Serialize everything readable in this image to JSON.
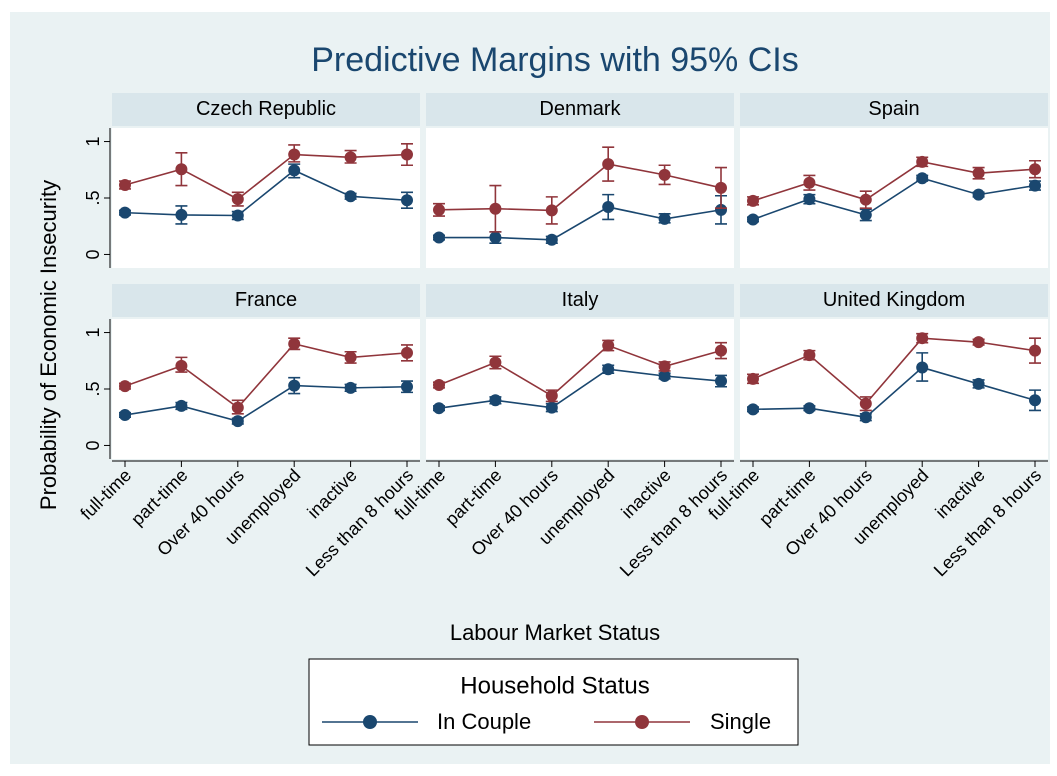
{
  "title": "Predictive Margins with 95% CIs",
  "x_label": "Labour Market Status",
  "y_label": "Probability of Economic Insecurity",
  "legend_title": "Household Status",
  "chart_data": [
    {
      "type": "line",
      "title": "Czech Republic",
      "categories": [
        "full-time",
        "part-time",
        "Over 40 hours",
        "unemployed",
        "inactive",
        "Less than 8 hours"
      ],
      "ylim": [
        -0.12,
        1.12
      ],
      "yticks": [
        0,
        {
          "value": 0.5,
          "label": ".5"
        },
        1
      ],
      "series": [
        {
          "name": "In Couple",
          "color": "#1a476f",
          "values": [
            0.37,
            0.35,
            0.345,
            0.745,
            0.515,
            0.48
          ],
          "ci_low": [
            0.35,
            0.27,
            0.31,
            0.68,
            0.49,
            0.41
          ],
          "ci_high": [
            0.39,
            0.43,
            0.38,
            0.8,
            0.54,
            0.55
          ]
        },
        {
          "name": "Single",
          "color": "#90353b",
          "values": [
            0.615,
            0.755,
            0.49,
            0.885,
            0.86,
            0.885
          ],
          "ci_low": [
            0.58,
            0.61,
            0.43,
            0.82,
            0.81,
            0.79
          ],
          "ci_high": [
            0.65,
            0.9,
            0.55,
            0.97,
            0.92,
            0.98
          ]
        }
      ]
    },
    {
      "type": "line",
      "title": "Denmark",
      "categories": [
        "full-time",
        "part-time",
        "Over 40 hours",
        "unemployed",
        "inactive",
        "Less than 8 hours"
      ],
      "ylim": [
        -0.12,
        1.12
      ],
      "yticks": [
        0,
        {
          "value": 0.5,
          "label": ".5"
        },
        1
      ],
      "series": [
        {
          "name": "In Couple",
          "color": "#1a476f",
          "values": [
            0.15,
            0.15,
            0.13,
            0.42,
            0.315,
            0.395
          ],
          "ci_low": [
            0.13,
            0.1,
            0.1,
            0.31,
            0.28,
            0.27
          ],
          "ci_high": [
            0.17,
            0.2,
            0.16,
            0.53,
            0.36,
            0.52
          ]
        },
        {
          "name": "Single",
          "color": "#90353b",
          "values": [
            0.395,
            0.405,
            0.39,
            0.8,
            0.705,
            0.59
          ],
          "ci_low": [
            0.34,
            0.2,
            0.27,
            0.65,
            0.62,
            0.41
          ],
          "ci_high": [
            0.45,
            0.61,
            0.51,
            0.95,
            0.79,
            0.77
          ]
        }
      ]
    },
    {
      "type": "line",
      "title": "Spain",
      "categories": [
        "full-time",
        "part-time",
        "Over 40 hours",
        "unemployed",
        "inactive",
        "Less than 8 hours"
      ],
      "ylim": [
        -0.12,
        1.12
      ],
      "yticks": [
        0,
        {
          "value": 0.5,
          "label": ".5"
        },
        1
      ],
      "series": [
        {
          "name": "In Couple",
          "color": "#1a476f",
          "values": [
            0.31,
            0.49,
            0.35,
            0.675,
            0.53,
            0.61
          ],
          "ci_low": [
            0.29,
            0.45,
            0.3,
            0.65,
            0.51,
            0.57
          ],
          "ci_high": [
            0.33,
            0.53,
            0.4,
            0.7,
            0.55,
            0.65
          ]
        },
        {
          "name": "Single",
          "color": "#90353b",
          "values": [
            0.475,
            0.635,
            0.485,
            0.82,
            0.72,
            0.755
          ],
          "ci_low": [
            0.44,
            0.57,
            0.41,
            0.78,
            0.67,
            0.68
          ],
          "ci_high": [
            0.51,
            0.7,
            0.56,
            0.86,
            0.77,
            0.83
          ]
        }
      ]
    },
    {
      "type": "line",
      "title": "France",
      "categories": [
        "full-time",
        "part-time",
        "Over 40 hours",
        "unemployed",
        "inactive",
        "Less than 8 hours"
      ],
      "ylim": [
        -0.12,
        1.12
      ],
      "yticks": [
        0,
        {
          "value": 0.5,
          "label": ".5"
        },
        1
      ],
      "series": [
        {
          "name": "In Couple",
          "color": "#1a476f",
          "values": [
            0.27,
            0.35,
            0.215,
            0.53,
            0.51,
            0.52
          ],
          "ci_low": [
            0.25,
            0.32,
            0.19,
            0.46,
            0.48,
            0.47
          ],
          "ci_high": [
            0.29,
            0.38,
            0.24,
            0.6,
            0.54,
            0.57
          ]
        },
        {
          "name": "Single",
          "color": "#90353b",
          "values": [
            0.525,
            0.705,
            0.335,
            0.9,
            0.78,
            0.82
          ],
          "ci_low": [
            0.5,
            0.65,
            0.28,
            0.85,
            0.73,
            0.75
          ],
          "ci_high": [
            0.55,
            0.78,
            0.4,
            0.95,
            0.83,
            0.89
          ]
        }
      ]
    },
    {
      "type": "line",
      "title": "Italy",
      "categories": [
        "full-time",
        "part-time",
        "Over 40 hours",
        "unemployed",
        "inactive",
        "Less than 8 hours"
      ],
      "ylim": [
        -0.12,
        1.12
      ],
      "yticks": [
        0,
        {
          "value": 0.5,
          "label": ".5"
        },
        1
      ],
      "series": [
        {
          "name": "In Couple",
          "color": "#1a476f",
          "values": [
            0.33,
            0.4,
            0.335,
            0.675,
            0.615,
            0.57
          ],
          "ci_low": [
            0.31,
            0.37,
            0.3,
            0.64,
            0.59,
            0.52
          ],
          "ci_high": [
            0.35,
            0.43,
            0.37,
            0.71,
            0.64,
            0.62
          ]
        },
        {
          "name": "Single",
          "color": "#90353b",
          "values": [
            0.535,
            0.735,
            0.44,
            0.885,
            0.7,
            0.84
          ],
          "ci_low": [
            0.51,
            0.68,
            0.39,
            0.84,
            0.66,
            0.77
          ],
          "ci_high": [
            0.56,
            0.79,
            0.49,
            0.93,
            0.74,
            0.91
          ]
        }
      ]
    },
    {
      "type": "line",
      "title": "United Kingdom",
      "categories": [
        "full-time",
        "part-time",
        "Over 40 hours",
        "unemployed",
        "inactive",
        "Less than 8 hours"
      ],
      "ylim": [
        -0.12,
        1.12
      ],
      "yticks": [
        0,
        {
          "value": 0.5,
          "label": ".5"
        },
        1
      ],
      "series": [
        {
          "name": "In Couple",
          "color": "#1a476f",
          "values": [
            0.32,
            0.33,
            0.25,
            0.69,
            0.545,
            0.4
          ],
          "ci_low": [
            0.3,
            0.31,
            0.22,
            0.57,
            0.51,
            0.31
          ],
          "ci_high": [
            0.34,
            0.35,
            0.28,
            0.82,
            0.58,
            0.49
          ]
        },
        {
          "name": "Single",
          "color": "#90353b",
          "values": [
            0.59,
            0.8,
            0.37,
            0.95,
            0.915,
            0.84
          ],
          "ci_low": [
            0.55,
            0.76,
            0.31,
            0.91,
            0.89,
            0.73
          ],
          "ci_high": [
            0.63,
            0.84,
            0.43,
            0.99,
            0.94,
            0.95
          ]
        }
      ]
    }
  ]
}
